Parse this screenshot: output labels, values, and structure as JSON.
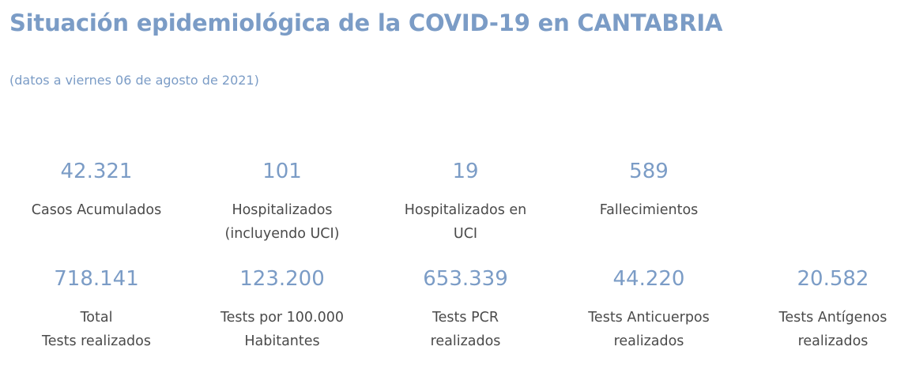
{
  "header": {
    "title": "Situación epidemiológica de la COVID-19 en CANTABRIA",
    "date_note": "(datos a viernes 06 de agosto de 2021)"
  },
  "stats_row1": [
    {
      "value": "42.321",
      "label_lines": [
        "Casos Acumulados"
      ]
    },
    {
      "value": "101",
      "label_lines": [
        "Hospitalizados",
        "(incluyendo UCI)"
      ]
    },
    {
      "value": "19",
      "label_lines": [
        "Hospitalizados en",
        "UCI"
      ]
    },
    {
      "value": "589",
      "label_lines": [
        "Fallecimientos"
      ]
    }
  ],
  "stats_row2": [
    {
      "value": "718.141",
      "label_lines": [
        "Total",
        "Tests realizados"
      ]
    },
    {
      "value": "123.200",
      "label_lines": [
        "Tests por 100.000",
        "Habitantes"
      ]
    },
    {
      "value": "653.339",
      "label_lines": [
        "Tests PCR",
        "realizados"
      ]
    },
    {
      "value": "44.220",
      "label_lines": [
        "Tests Anticuerpos",
        "realizados"
      ]
    },
    {
      "value": "20.582",
      "label_lines": [
        "Tests Antígenos",
        "realizados"
      ]
    }
  ],
  "colors": {
    "accent": "#7b9cc6",
    "label_text": "#4a4a4a",
    "background": "#ffffff"
  }
}
